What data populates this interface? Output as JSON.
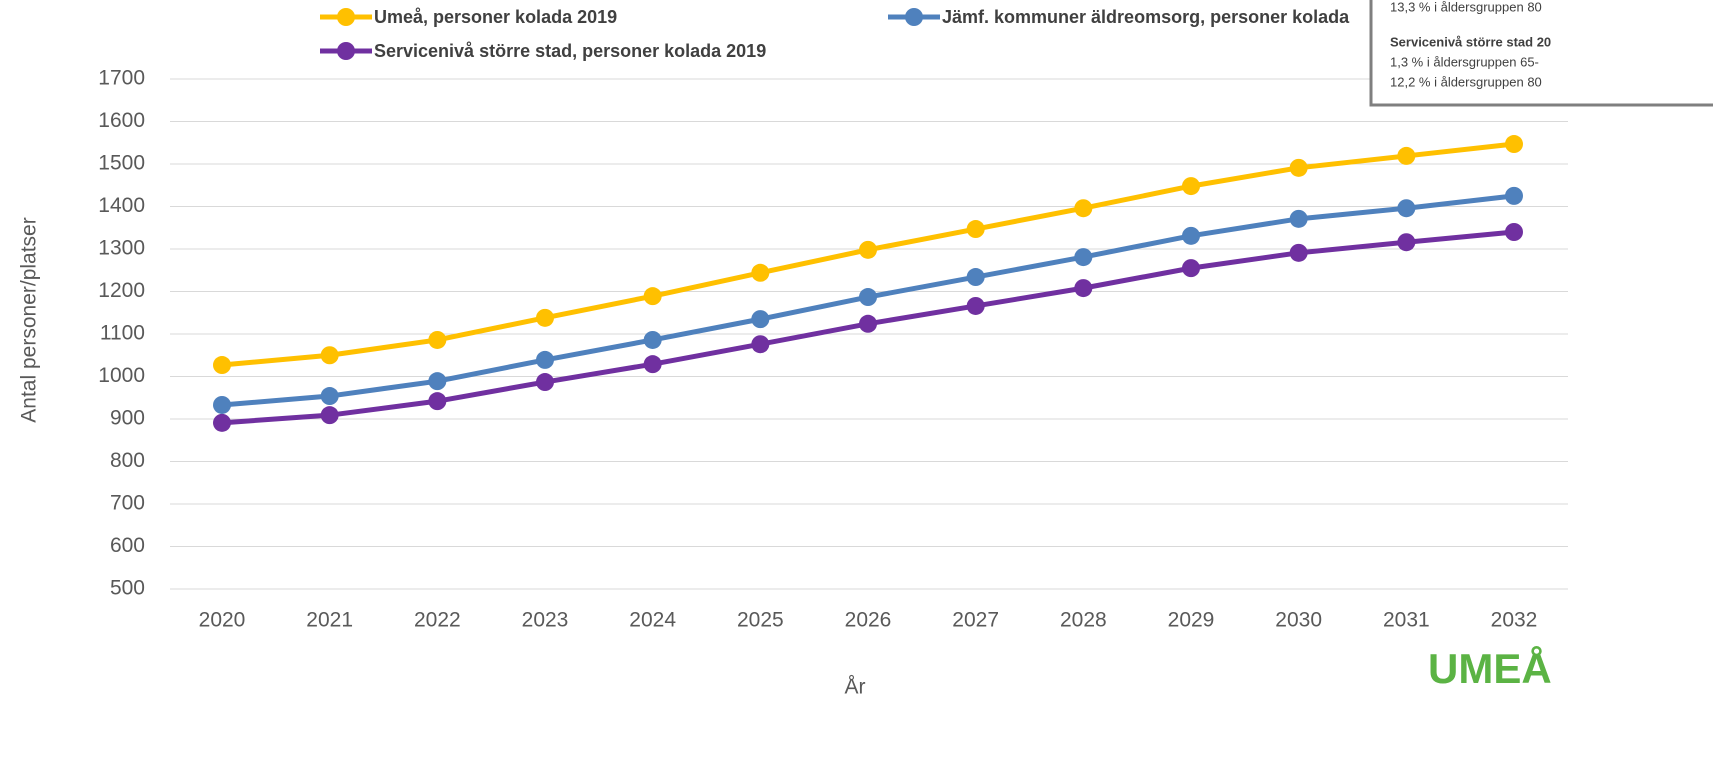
{
  "chart_data": {
    "type": "line",
    "x_label": "År",
    "y_label": "Antal personer/platser",
    "categories": [
      "2020",
      "2021",
      "2022",
      "2023",
      "2024",
      "2025",
      "2026",
      "2027",
      "2028",
      "2029",
      "2030",
      "2031",
      "2032"
    ],
    "series": [
      {
        "name": "Umeå, personer kolada 2019",
        "color": "#FFC000",
        "values": [
          1027,
          1050,
          1086,
          1138,
          1189,
          1244,
          1298,
          1347,
          1396,
          1448,
          1491,
          1519,
          1547
        ]
      },
      {
        "name": "Jämf. kommuner äldreomsorg, personer kolada",
        "color": "#4F81BD",
        "values": [
          933,
          954,
          989,
          1039,
          1086,
          1135,
          1187,
          1234,
          1281,
          1331,
          1371,
          1396,
          1425
        ]
      },
      {
        "name": "Servicenivå större stad, personer kolada 2019",
        "color": "#7030A0",
        "values": [
          891,
          909,
          942,
          987,
          1029,
          1076,
          1124,
          1166,
          1208,
          1255,
          1291,
          1316,
          1340
        ]
      }
    ],
    "ylim": [
      500,
      1700
    ],
    "yticks": [
      500,
      600,
      700,
      800,
      900,
      1000,
      1100,
      1200,
      1300,
      1400,
      1500,
      1600,
      1700
    ],
    "grid": true,
    "legend": "top",
    "annotation": {
      "lines": [
        "13,3 % i åldersgruppen 80",
        "Servicenivå större stad 20",
        "1,3 % i åldersgruppen 65-",
        "12,2 % i åldersgruppen 80"
      ]
    },
    "logo": "UMEÅ"
  }
}
